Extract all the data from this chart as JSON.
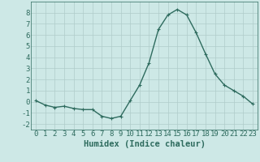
{
  "x": [
    0,
    1,
    2,
    3,
    4,
    5,
    6,
    7,
    8,
    9,
    10,
    11,
    12,
    13,
    14,
    15,
    16,
    17,
    18,
    19,
    20,
    21,
    22,
    23
  ],
  "y": [
    0.1,
    -0.3,
    -0.5,
    -0.4,
    -0.6,
    -0.7,
    -0.7,
    -1.3,
    -1.5,
    -1.3,
    0.1,
    1.5,
    3.5,
    6.5,
    7.8,
    8.3,
    7.8,
    6.2,
    4.3,
    2.5,
    1.5,
    1.0,
    0.5,
    -0.2
  ],
  "line_color": "#2e6b5e",
  "marker": "P",
  "marker_size": 2.5,
  "bg_color": "#cde8e6",
  "grid_color": "#b0ccca",
  "xlabel": "Humidex (Indice chaleur)",
  "xlim": [
    -0.5,
    23.5
  ],
  "ylim": [
    -2.5,
    9.0
  ],
  "yticks": [
    -2,
    -1,
    0,
    1,
    2,
    3,
    4,
    5,
    6,
    7,
    8
  ],
  "xticks": [
    0,
    1,
    2,
    3,
    4,
    5,
    6,
    7,
    8,
    9,
    10,
    11,
    12,
    13,
    14,
    15,
    16,
    17,
    18,
    19,
    20,
    21,
    22,
    23
  ],
  "font_color": "#2e6b5e",
  "tick_fontsize": 6.5,
  "label_fontsize": 7.5
}
